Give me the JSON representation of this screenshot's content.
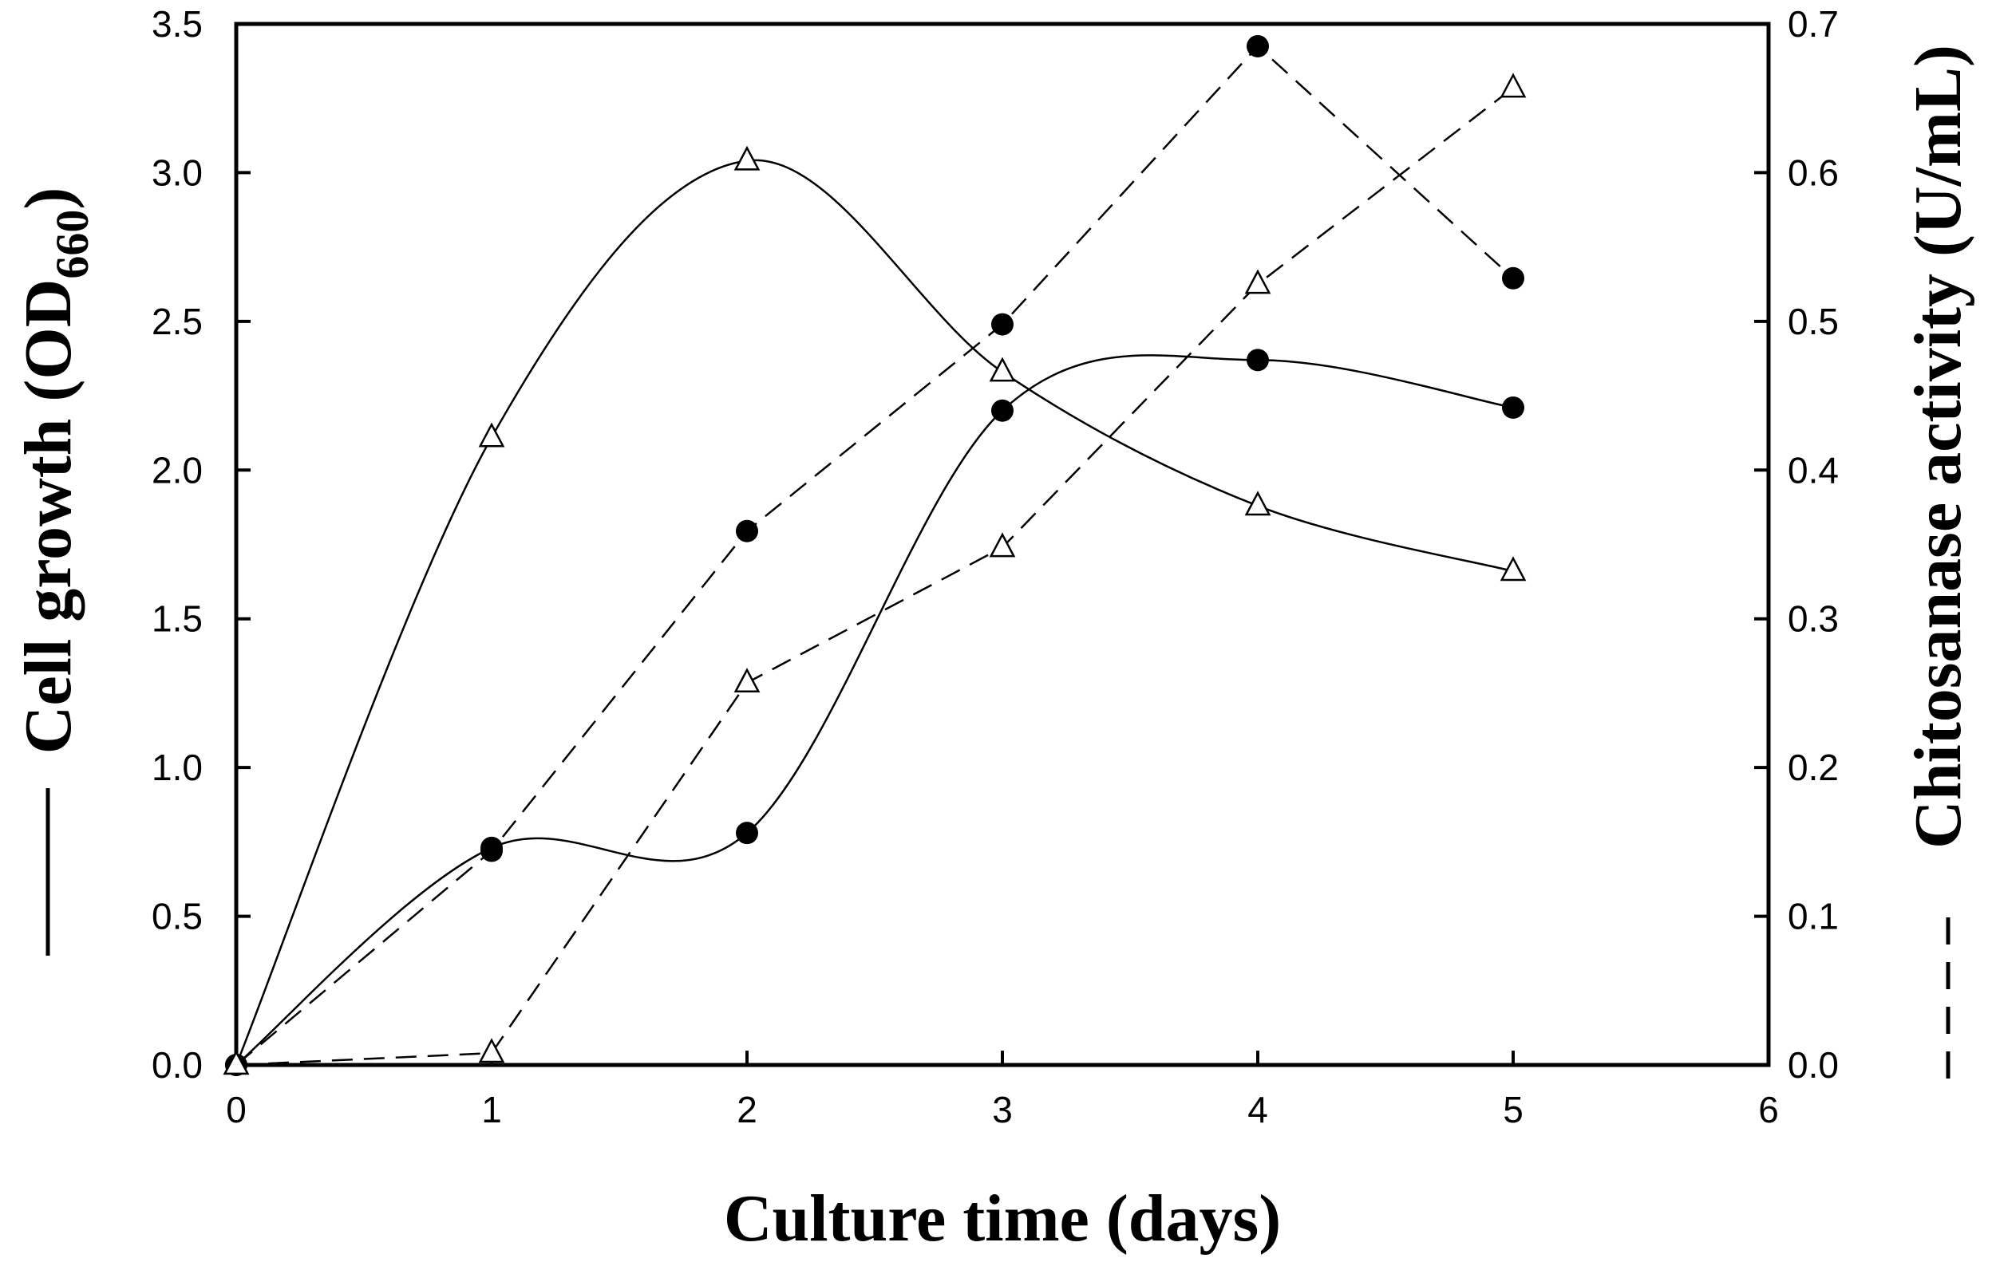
{
  "chart_data": {
    "type": "line",
    "xlabel": "Culture time (days)",
    "ylabel_left": {
      "main": "Cell growth (OD",
      "subscript": "660",
      "close": ")"
    },
    "ylabel_right": "Chitosanase activity (U/mL)",
    "xlim": [
      0,
      6
    ],
    "ylim_left": [
      0.0,
      3.5
    ],
    "ylim_right": [
      0.0,
      0.7
    ],
    "x_ticks": [
      "0",
      "1",
      "2",
      "3",
      "4",
      "5",
      "6"
    ],
    "y_left_ticks": [
      "0.0",
      "0.5",
      "1.0",
      "1.5",
      "2.0",
      "2.5",
      "3.0",
      "3.5"
    ],
    "y_right_ticks": [
      "0.0",
      "0.1",
      "0.2",
      "0.3",
      "0.4",
      "0.5",
      "0.6",
      "0.7"
    ],
    "legend": {
      "left_axis_line": "solid",
      "right_axis_line": "dashed"
    },
    "x": [
      0,
      1,
      2,
      3,
      4,
      5
    ],
    "series": [
      {
        "axis": "left",
        "marker": "filled-circle",
        "line": "solid-smooth",
        "values": [
          0.0,
          0.73,
          0.78,
          2.2,
          2.37,
          2.21
        ]
      },
      {
        "axis": "left",
        "marker": "open-triangle",
        "line": "solid-smooth",
        "values": [
          0.0,
          2.11,
          3.04,
          2.33,
          1.88,
          1.66
        ]
      },
      {
        "axis": "right",
        "marker": "filled-circle",
        "line": "dashed",
        "values": [
          0.0,
          0.144,
          0.359,
          0.498,
          0.685,
          0.529
        ]
      },
      {
        "axis": "right",
        "marker": "open-triangle",
        "line": "dashed",
        "values": [
          0.0,
          0.008,
          0.257,
          0.348,
          0.525,
          0.657
        ]
      }
    ]
  }
}
